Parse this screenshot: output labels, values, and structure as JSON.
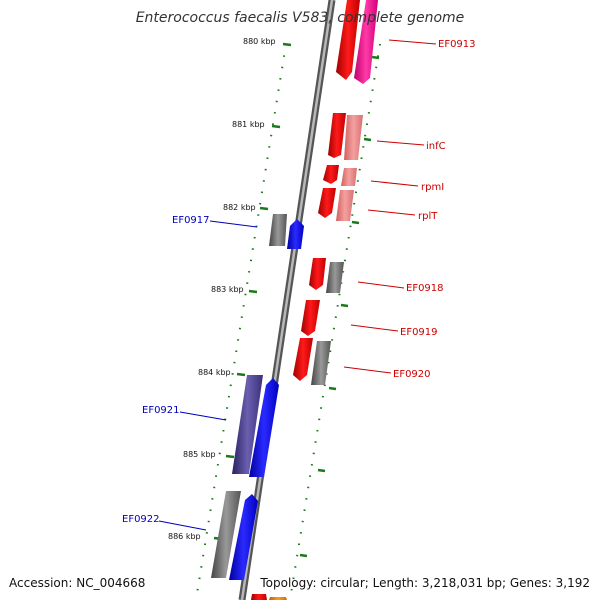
{
  "title": "Enterococcus faecalis V583, complete genome",
  "accession": "Accession: NC_004668",
  "summary": "Topology: circular; Length: 3,218,031 bp; Genes: 3,192",
  "colors": {
    "forward_label": "#cc0000",
    "reverse_label": "#0000bb",
    "backbone": "#888888",
    "ruler": "#1a7a1a"
  },
  "ruler_labels": [
    "880 kbp",
    "881 kbp",
    "882 kbp",
    "883 kbp",
    "884 kbp",
    "885 kbp",
    "886 kbp"
  ],
  "gene_labels": {
    "ef0913": "EF0913",
    "infc": "infC",
    "rpmi": "rpmI",
    "rplt": "rplT",
    "ef0917": "EF0917",
    "ef0918": "EF0918",
    "ef0919": "EF0919",
    "ef0920": "EF0920",
    "ef0921": "EF0921",
    "ef0922": "EF0922"
  }
}
